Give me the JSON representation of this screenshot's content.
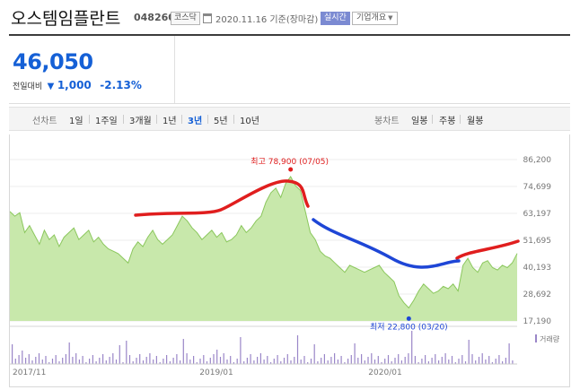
{
  "header": {
    "stock_name": "오스템임플란트",
    "stock_code": "048260",
    "market_badge": "코스닥",
    "calendar_icon": "calendar-icon",
    "date_text": "2020.11.16 기준(장마감)",
    "realtime_badge": "실시간",
    "company_dropdown": "기업개요"
  },
  "price": {
    "current": "46,050",
    "change_label": "전일대비",
    "change_direction": "down",
    "change_amount": "1,000",
    "change_percent": "-2.13%",
    "color_down": "#1560d6"
  },
  "toolbar": {
    "line_label": "선차트",
    "periods": [
      "1일",
      "1주일",
      "3개월",
      "1년",
      "3년",
      "5년",
      "10년"
    ],
    "active_period": "3년",
    "candle_label": "봉차트",
    "candle_periods": [
      "일봉",
      "주봉",
      "월봉"
    ]
  },
  "chart_data": {
    "type": "area",
    "y_ticks": [
      "86,200",
      "74,699",
      "63,197",
      "51,695",
      "40,193",
      "28,692",
      "17,190"
    ],
    "ylim": [
      17190,
      86200
    ],
    "x_ticks": [
      "2017/11",
      "2019/01",
      "2020/01"
    ],
    "high_label": "최고 78,900 (07/05)",
    "low_label": "최저 22,800 (03/20)",
    "volume_legend": "거래량",
    "price_series": [
      64000,
      62000,
      63500,
      55000,
      58000,
      54000,
      50000,
      56000,
      52000,
      54000,
      49000,
      53000,
      55000,
      57000,
      52000,
      54000,
      56000,
      51000,
      53000,
      50000,
      48000,
      47000,
      46000,
      44000,
      42000,
      48000,
      51000,
      49000,
      53000,
      56000,
      52000,
      50000,
      52000,
      54000,
      58000,
      62000,
      60000,
      57000,
      55000,
      52000,
      54000,
      56000,
      53000,
      55000,
      51000,
      52000,
      54000,
      58000,
      55000,
      57000,
      60000,
      62000,
      68000,
      72000,
      74000,
      70000,
      76000,
      78900,
      75000,
      73000,
      64000,
      55000,
      52000,
      47000,
      45000,
      44000,
      42000,
      40000,
      38000,
      41000,
      40000,
      39000,
      38000,
      39000,
      40000,
      41000,
      38000,
      36000,
      34000,
      28000,
      25000,
      22800,
      26000,
      30000,
      33000,
      31000,
      29000,
      30000,
      32000,
      31000,
      33000,
      30000,
      41000,
      44000,
      40000,
      38000,
      42000,
      43000,
      40000,
      39000,
      41000,
      40000,
      42000,
      46050
    ],
    "colors": {
      "area_fill": "#c8e8ab",
      "area_line": "#8bc75d",
      "trend_red": "#e01e1e",
      "trend_blue": "#1e46d6",
      "volume_bar": "#9a86c8",
      "grid": "#ececec",
      "axis_text": "#777"
    }
  }
}
